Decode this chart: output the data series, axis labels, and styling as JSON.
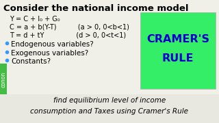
{
  "bg_color": "#f0f0e8",
  "title": "Consider the national income model",
  "title_fontsize": 9.5,
  "title_color": "#000000",
  "eq1": "Y = C + I₀ + G₀",
  "eq2": "C = a + b(Y-T)          (a > 0, 0<b<1)",
  "eq3": "T = d + tY               (d > 0, 0<t<1)",
  "eq_fontsize": 7.0,
  "bullets": [
    "Endogenous variables?",
    "Exogenous variables?",
    "Constants?"
  ],
  "bullet_fontsize": 7.5,
  "bullet_color": "#000000",
  "footer_line1": "find equilibrium level of income",
  "footer_line2": "consumption and Taxes using Cramer's Rule",
  "footer_fontsize": 7.5,
  "footer_color": "#000000",
  "cramer_bg": "#33ee66",
  "cramer_text1": "CRAMER'S",
  "cramer_text2": "RULE",
  "cramer_fontsize": 11.5,
  "cramer_color": "#0000cc",
  "sidebar_color": "#44bb44",
  "sidebar_text": "conon",
  "sidebar_fontsize": 5.5
}
